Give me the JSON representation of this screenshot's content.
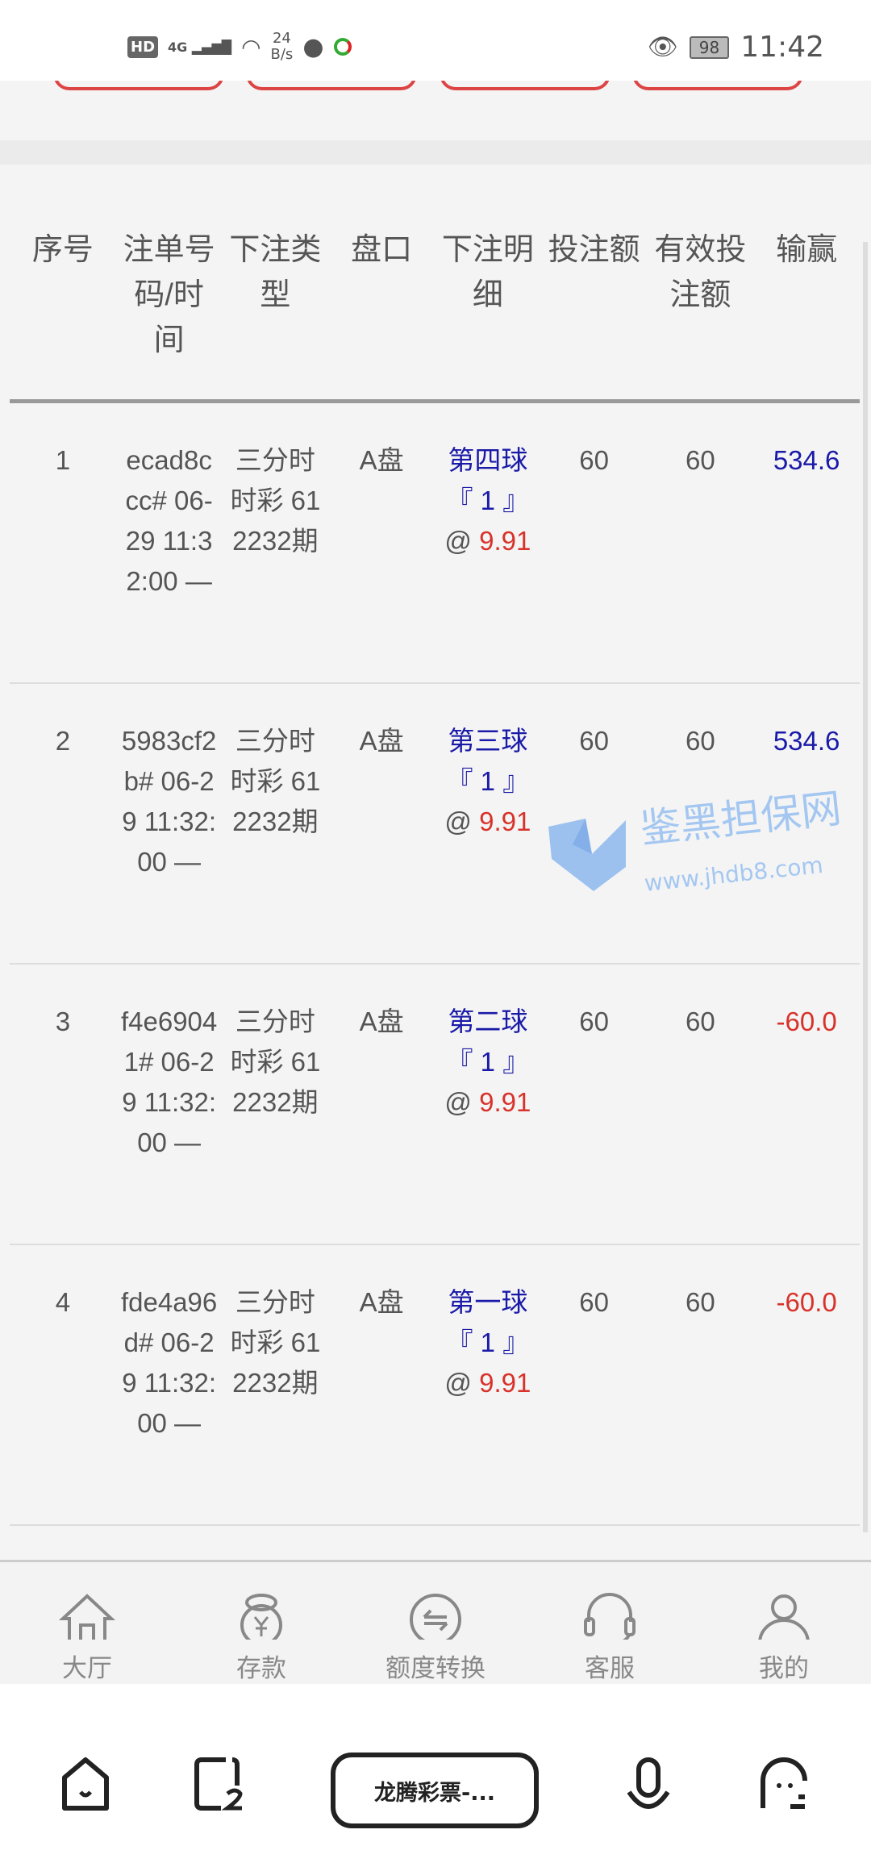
{
  "status_bar": {
    "hd": "HD",
    "network": "4G",
    "speed_value": "24",
    "speed_unit": "B/s",
    "battery": "98",
    "time": "11:42"
  },
  "table": {
    "headers": [
      "序号",
      "注单号码/时间",
      "下注类型",
      "盘口",
      "下注明细",
      "投注额",
      "有效投注额",
      "输赢"
    ],
    "rows": [
      {
        "index": "1",
        "order": "ecad8ccc# 06-29 11:32:00 —",
        "type": "三分时时彩 612232期",
        "market": "A盘",
        "detail_pos": "第四球",
        "detail_num": "『 1 』",
        "odds_at": "@ ",
        "odds": "9.91",
        "bet": "60",
        "valid_bet": "60",
        "result": "534.6",
        "result_color": "#1a1aa8"
      },
      {
        "index": "2",
        "order": "5983cf2b# 06-29 11:32:00 —",
        "type": "三分时时彩 612232期",
        "market": "A盘",
        "detail_pos": "第三球",
        "detail_num": "『 1 』",
        "odds_at": "@ ",
        "odds": "9.91",
        "bet": "60",
        "valid_bet": "60",
        "result": "534.6",
        "result_color": "#1a1aa8"
      },
      {
        "index": "3",
        "order": "f4e69041# 06-29 11:32:00 —",
        "type": "三分时时彩 612232期",
        "market": "A盘",
        "detail_pos": "第二球",
        "detail_num": "『 1 』",
        "odds_at": "@ ",
        "odds": "9.91",
        "bet": "60",
        "valid_bet": "60",
        "result": "-60.0",
        "result_color": "#d8322a"
      },
      {
        "index": "4",
        "order": "fde4a96d# 06-29 11:32:00 —",
        "type": "三分时时彩 612232期",
        "market": "A盘",
        "detail_pos": "第一球",
        "detail_num": "『 1 』",
        "odds_at": "@ ",
        "odds": "9.91",
        "bet": "60",
        "valid_bet": "60",
        "result": "-60.0",
        "result_color": "#d8322a"
      }
    ]
  },
  "watermark": {
    "name": "鉴黑担保网",
    "url": "www.jhdb8.com"
  },
  "bottom_nav": [
    {
      "label": "大厅",
      "icon": "home-icon"
    },
    {
      "label": "存款",
      "icon": "money-bag-icon"
    },
    {
      "label": "额度转换",
      "icon": "transfer-icon"
    },
    {
      "label": "客服",
      "icon": "headset-icon"
    },
    {
      "label": "我的",
      "icon": "user-icon"
    }
  ],
  "system_nav": {
    "app_title": "龙腾彩票-..."
  }
}
